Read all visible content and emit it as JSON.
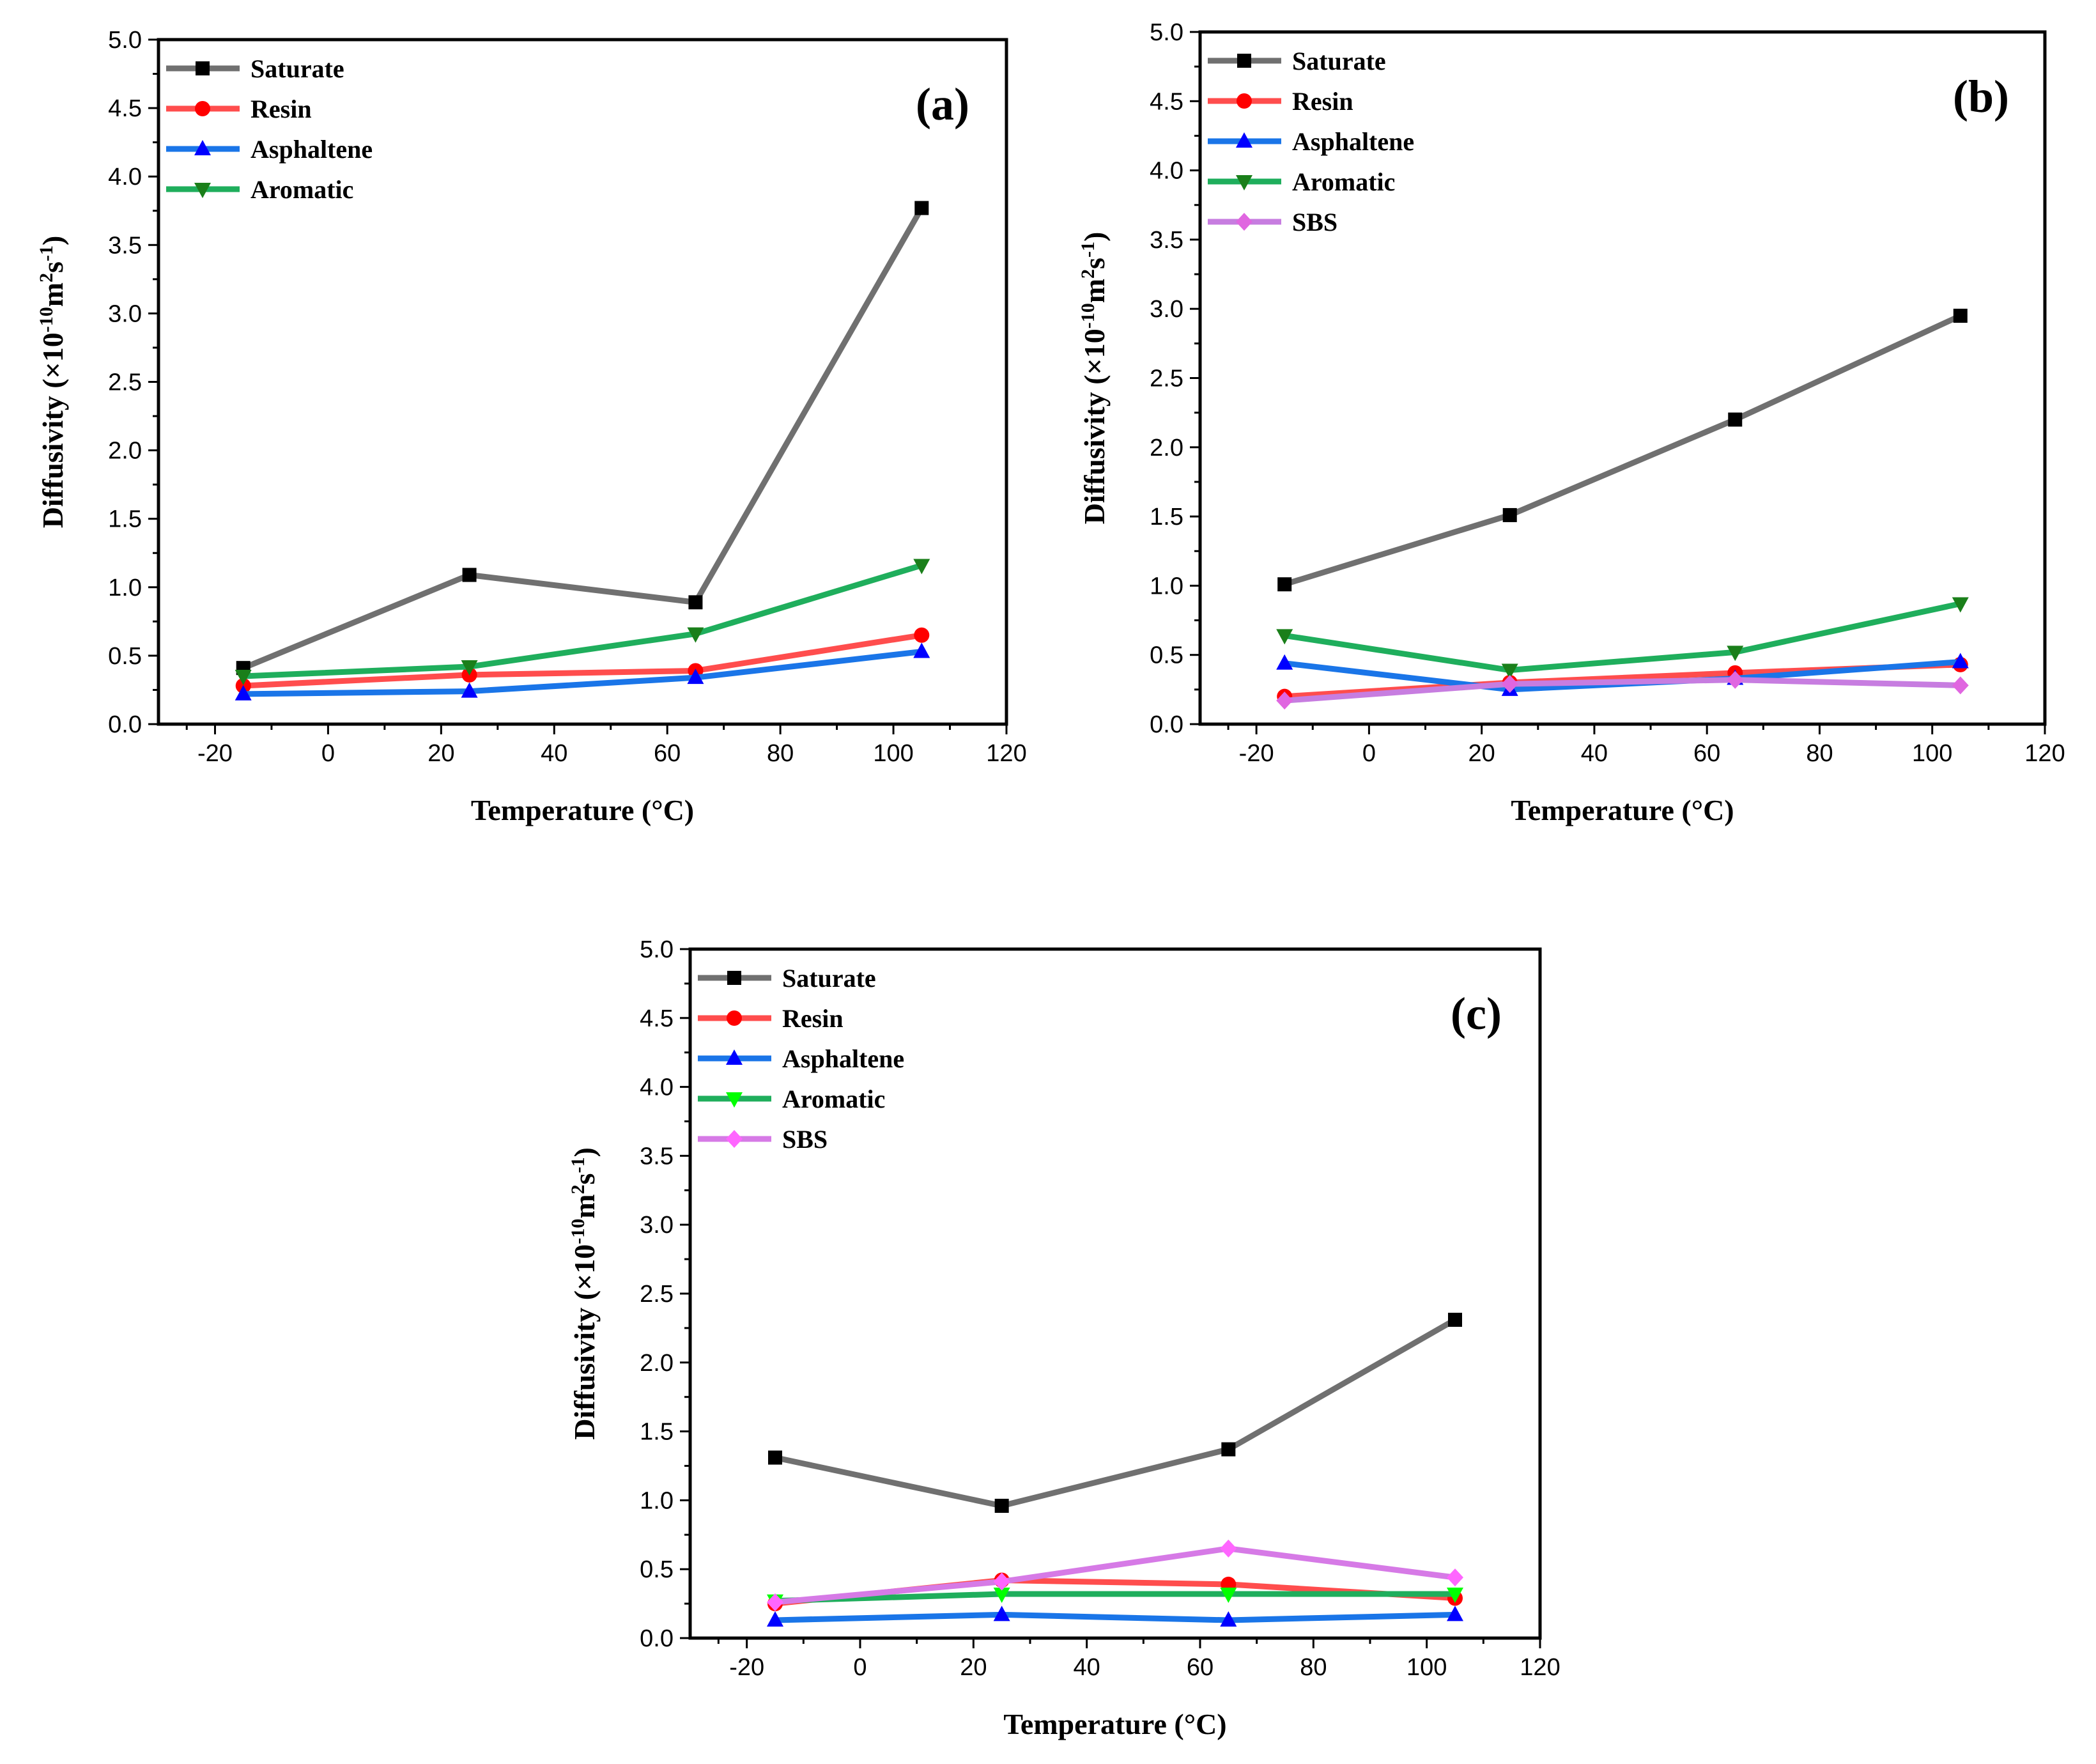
{
  "figure": {
    "ylabel_main": "Diffusivity (×10",
    "ylabel_exp1": "-10",
    "ylabel_mid": "m",
    "ylabel_exp2": "2",
    "ylabel_mid2": "s",
    "ylabel_exp3": "-1",
    "ylabel_end": ")"
  },
  "chart_data": [
    {
      "type": "line",
      "panel_label": "(a)",
      "xlabel": "Temperature (°C)",
      "ylabel": "Diffusivity (×10-10m2s-1)",
      "xlim": [
        -30,
        120
      ],
      "ylim": [
        0,
        5
      ],
      "x_ticks": [
        -20,
        0,
        20,
        40,
        60,
        80,
        100,
        120
      ],
      "y_ticks": [
        0.0,
        0.5,
        1.0,
        1.5,
        2.0,
        2.5,
        3.0,
        3.5,
        4.0,
        4.5,
        5.0
      ],
      "x": [
        -15,
        25,
        65,
        105
      ],
      "legend_position": "top-left",
      "series": [
        {
          "name": "Saturate",
          "values": [
            0.41,
            1.09,
            0.89,
            3.77
          ],
          "line_color": "#707070",
          "marker_color": "#000000",
          "marker": "square"
        },
        {
          "name": "Resin",
          "values": [
            0.28,
            0.36,
            0.39,
            0.65
          ],
          "line_color": "#ff4d4d",
          "marker_color": "#ff0000",
          "marker": "circle"
        },
        {
          "name": "Asphaltene",
          "values": [
            0.22,
            0.24,
            0.34,
            0.53
          ],
          "line_color": "#1a75e8",
          "marker_color": "#0000ff",
          "marker": "triangle-up"
        },
        {
          "name": "Aromatic",
          "values": [
            0.35,
            0.42,
            0.66,
            1.16
          ],
          "line_color": "#1fae5c",
          "marker_color": "#1a7f1a",
          "marker": "triangle-down"
        }
      ]
    },
    {
      "type": "line",
      "panel_label": "(b)",
      "xlabel": "Temperature (°C)",
      "ylabel": "Diffusivity (×10-10m2s-1)",
      "xlim": [
        -30,
        120
      ],
      "ylim": [
        0,
        5
      ],
      "x_ticks": [
        -20,
        0,
        20,
        40,
        60,
        80,
        100,
        120
      ],
      "y_ticks": [
        0.0,
        0.5,
        1.0,
        1.5,
        2.0,
        2.5,
        3.0,
        3.5,
        4.0,
        4.5,
        5.0
      ],
      "x": [
        -15,
        25,
        65,
        105
      ],
      "legend_position": "top-left",
      "series": [
        {
          "name": "Saturate",
          "values": [
            1.01,
            1.51,
            2.2,
            2.95
          ],
          "line_color": "#707070",
          "marker_color": "#000000",
          "marker": "square"
        },
        {
          "name": "Resin",
          "values": [
            0.2,
            0.3,
            0.37,
            0.43
          ],
          "line_color": "#ff4d4d",
          "marker_color": "#ff0000",
          "marker": "circle"
        },
        {
          "name": "Asphaltene",
          "values": [
            0.44,
            0.25,
            0.33,
            0.45
          ],
          "line_color": "#1a75e8",
          "marker_color": "#0000ff",
          "marker": "triangle-up"
        },
        {
          "name": "Aromatic",
          "values": [
            0.64,
            0.39,
            0.52,
            0.87
          ],
          "line_color": "#1fae5c",
          "marker_color": "#1a7f1a",
          "marker": "triangle-down"
        },
        {
          "name": "SBS",
          "values": [
            0.17,
            0.29,
            0.32,
            0.28
          ],
          "line_color": "#c77de0",
          "marker_color": "#e066e0",
          "marker": "diamond"
        }
      ]
    },
    {
      "type": "line",
      "panel_label": "(c)",
      "xlabel": "Temperature (°C)",
      "ylabel": "Diffusivity (×10-10m2s-1)",
      "xlim": [
        -30,
        120
      ],
      "ylim": [
        0,
        5
      ],
      "x_ticks": [
        -20,
        0,
        20,
        40,
        60,
        80,
        100,
        120
      ],
      "y_ticks": [
        0.0,
        0.5,
        1.0,
        1.5,
        2.0,
        2.5,
        3.0,
        3.5,
        4.0,
        4.5,
        5.0
      ],
      "x": [
        -15,
        25,
        65,
        105
      ],
      "legend_position": "top-left",
      "series": [
        {
          "name": "Saturate",
          "values": [
            1.31,
            0.96,
            1.37,
            2.31
          ],
          "line_color": "#707070",
          "marker_color": "#000000",
          "marker": "square"
        },
        {
          "name": "Resin",
          "values": [
            0.25,
            0.42,
            0.39,
            0.29
          ],
          "line_color": "#ff4d4d",
          "marker_color": "#ff0000",
          "marker": "circle"
        },
        {
          "name": "Asphaltene",
          "values": [
            0.13,
            0.17,
            0.13,
            0.17
          ],
          "line_color": "#1a75e8",
          "marker_color": "#0000ff",
          "marker": "triangle-up"
        },
        {
          "name": "Aromatic",
          "values": [
            0.27,
            0.32,
            0.32,
            0.32
          ],
          "line_color": "#1fae5c",
          "marker_color": "#00ff00",
          "marker": "triangle-down"
        },
        {
          "name": "SBS",
          "values": [
            0.26,
            0.41,
            0.65,
            0.44
          ],
          "line_color": "#d67ae6",
          "marker_color": "#ff66ff",
          "marker": "diamond"
        }
      ]
    }
  ]
}
